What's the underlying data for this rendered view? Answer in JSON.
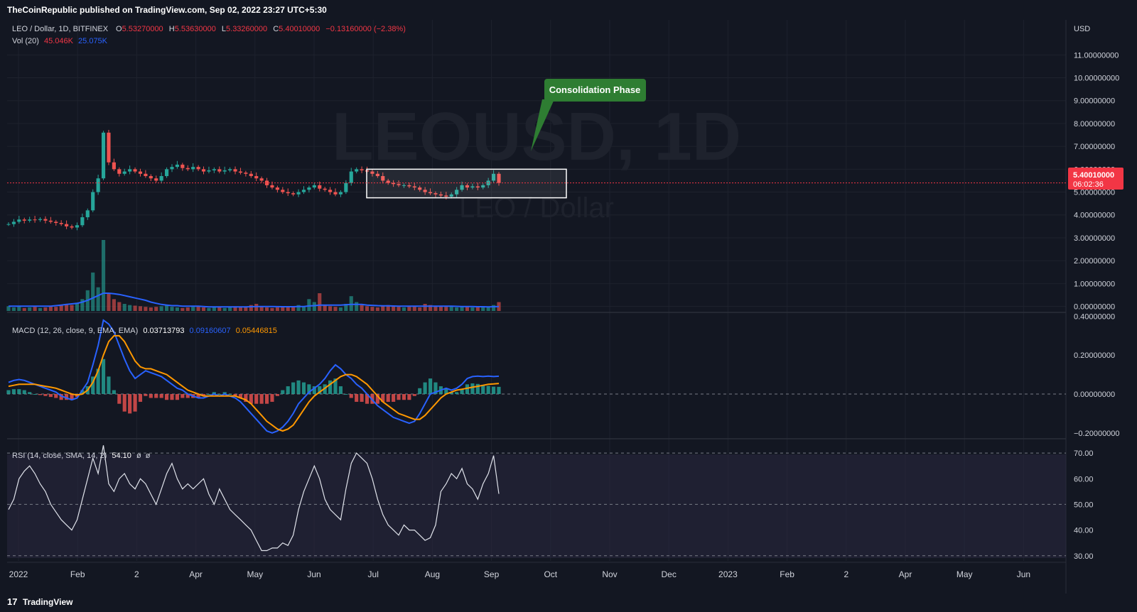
{
  "header": {
    "publisher": "TheCoinRepublic published on TradingView.com, Sep 02, 2022 23:27 UTC+5:30"
  },
  "footer": {
    "logo_text": "17",
    "brand": "TradingView"
  },
  "chart_data": {
    "type": "line",
    "symbol": "LEO / Dollar, 1D, BITFINEX",
    "watermark": "LEOUSD, 1D",
    "watermark_sub": "LEO / Dollar",
    "currency": "USD",
    "ohlc": {
      "open_label": "O",
      "open": "5.53270000",
      "high_label": "H",
      "high": "5.53630000",
      "low_label": "L",
      "low": "5.33260000",
      "close_label": "C",
      "close": "5.40010000",
      "change": "−0.13160000 (−2.38%)"
    },
    "last_price": "5.40010000",
    "countdown": "06:02:36",
    "volume": {
      "label": "Vol (20)",
      "value": "45.046K",
      "ma": "25.075K"
    },
    "macd": {
      "label": "MACD (12, 26, close, 9, EMA, EMA)",
      "hist": "0.03713793",
      "macd": "0.09160607",
      "signal": "0.05446815"
    },
    "rsi": {
      "label": "RSI (14, close, SMA, 14, 2)",
      "value": "54.10",
      "extra1": "ø",
      "extra2": "ø"
    },
    "annotation": {
      "text": "Consolidation Phase"
    },
    "price_ticks": [
      "11.00000000",
      "10.00000000",
      "9.00000000",
      "8.00000000",
      "7.00000000",
      "6.00000000",
      "5.00000000",
      "4.00000000",
      "3.00000000",
      "2.00000000",
      "1.00000000",
      "0.00000000"
    ],
    "price_ylim": [
      -0.2,
      11.6
    ],
    "macd_ticks": [
      "0.40000000",
      "0.20000000",
      "0.00000000",
      "−0.20000000"
    ],
    "macd_ylim": [
      -0.23,
      0.42
    ],
    "rsi_ticks": [
      "70.00",
      "60.00",
      "50.00",
      "40.00",
      "30.00"
    ],
    "rsi_ylim": [
      28,
      75
    ],
    "x_ticks": [
      "2022",
      "Feb",
      "2",
      "Apr",
      "May",
      "Jun",
      "Jul",
      "Aug",
      "Sep",
      "Oct",
      "Nov",
      "Dec",
      "2023",
      "Feb",
      "2",
      "Apr",
      "May",
      "Jun"
    ],
    "consolidation_box": {
      "x_start": "Jun 23, 2022",
      "x_end": "Sep 30, 2022",
      "y_high": 6.0,
      "y_low": 4.75
    },
    "close_series": [
      3.6,
      3.7,
      3.8,
      3.75,
      3.8,
      3.78,
      3.82,
      3.75,
      3.7,
      3.65,
      3.6,
      3.5,
      3.45,
      3.55,
      3.9,
      4.2,
      5.0,
      5.6,
      7.6,
      6.3,
      6.0,
      5.8,
      5.9,
      6.0,
      5.9,
      5.8,
      5.7,
      5.6,
      5.5,
      5.7,
      6.0,
      6.1,
      6.2,
      6.05,
      6.0,
      6.1,
      6.0,
      5.9,
      5.95,
      6.0,
      5.9,
      5.95,
      6.0,
      5.9,
      5.85,
      5.8,
      5.7,
      5.6,
      5.5,
      5.3,
      5.2,
      5.1,
      5.0,
      4.95,
      4.9,
      5.0,
      5.1,
      5.2,
      5.3,
      5.15,
      5.1,
      5.0,
      4.9,
      5.0,
      5.4,
      5.9,
      6.0,
      5.95,
      5.9,
      5.8,
      5.7,
      5.5,
      5.4,
      5.35,
      5.3,
      5.3,
      5.25,
      5.2,
      5.1,
      5.0,
      4.95,
      4.9,
      4.85,
      4.8,
      4.9,
      5.1,
      5.3,
      5.2,
      5.25,
      5.2,
      5.3,
      5.5,
      5.8,
      5.4
    ],
    "volume_series": [
      0.8,
      0.6,
      0.7,
      0.5,
      0.6,
      0.7,
      0.5,
      0.6,
      0.8,
      0.7,
      0.9,
      1.2,
      1.0,
      1.4,
      2.0,
      3.5,
      6.5,
      4.0,
      12.0,
      3.0,
      2.0,
      1.5,
      1.2,
      1.0,
      0.9,
      0.8,
      0.7,
      0.6,
      0.7,
      0.8,
      0.9,
      0.7,
      0.6,
      0.5,
      0.6,
      0.7,
      0.8,
      0.6,
      0.5,
      0.6,
      0.7,
      0.5,
      0.6,
      0.8,
      0.7,
      0.6,
      1.0,
      1.2,
      0.8,
      0.6,
      0.5,
      0.6,
      0.8,
      0.6,
      0.7,
      1.0,
      0.8,
      2.0,
      1.5,
      3.0,
      1.0,
      0.8,
      0.7,
      0.6,
      1.2,
      2.5,
      1.5,
      1.0,
      0.8,
      0.7,
      0.6,
      0.9,
      1.0,
      0.8,
      0.7,
      0.6,
      0.7,
      0.8,
      0.6,
      1.2,
      1.0,
      0.8,
      0.9,
      0.7,
      0.8,
      0.6,
      0.7,
      0.8,
      0.6,
      0.7,
      0.8,
      0.6,
      1.0,
      1.5
    ],
    "vol_ma_series": [
      0.8,
      0.8,
      0.8,
      0.8,
      0.8,
      0.8,
      0.8,
      0.8,
      0.8,
      0.9,
      1.0,
      1.1,
      1.2,
      1.3,
      1.5,
      1.8,
      2.2,
      2.6,
      3.0,
      3.0,
      2.9,
      2.8,
      2.6,
      2.4,
      2.2,
      2.0,
      1.8,
      1.5,
      1.3,
      1.1,
      1.0,
      0.9,
      0.9,
      0.8,
      0.8,
      0.8,
      0.8,
      0.75,
      0.7,
      0.7,
      0.7,
      0.7,
      0.7,
      0.7,
      0.7,
      0.7,
      0.72,
      0.74,
      0.75,
      0.75,
      0.74,
      0.73,
      0.72,
      0.72,
      0.72,
      0.74,
      0.76,
      0.85,
      0.9,
      1.0,
      1.0,
      1.0,
      1.0,
      1.0,
      1.05,
      1.1,
      1.1,
      1.1,
      1.0,
      0.95,
      0.9,
      0.88,
      0.86,
      0.84,
      0.82,
      0.8,
      0.8,
      0.8,
      0.8,
      0.82,
      0.82,
      0.82,
      0.82,
      0.8,
      0.8,
      0.78,
      0.76,
      0.75,
      0.74,
      0.72,
      0.72,
      0.7,
      0.72,
      0.75
    ],
    "macd_series": [
      0.06,
      0.07,
      0.075,
      0.07,
      0.06,
      0.05,
      0.04,
      0.03,
      0.02,
      0.01,
      -0.01,
      -0.02,
      -0.03,
      -0.02,
      0.02,
      0.06,
      0.15,
      0.25,
      0.38,
      0.36,
      0.32,
      0.25,
      0.18,
      0.12,
      0.08,
      0.1,
      0.12,
      0.11,
      0.1,
      0.09,
      0.07,
      0.05,
      0.03,
      0.02,
      0.0,
      -0.01,
      -0.02,
      -0.02,
      -0.01,
      0.0,
      -0.01,
      0.0,
      -0.01,
      -0.02,
      -0.04,
      -0.07,
      -0.1,
      -0.13,
      -0.16,
      -0.19,
      -0.2,
      -0.19,
      -0.17,
      -0.14,
      -0.1,
      -0.05,
      -0.02,
      0.01,
      0.03,
      0.05,
      0.08,
      0.12,
      0.15,
      0.13,
      0.1,
      0.08,
      0.05,
      0.03,
      0.0,
      -0.03,
      -0.06,
      -0.08,
      -0.1,
      -0.12,
      -0.13,
      -0.14,
      -0.15,
      -0.14,
      -0.1,
      -0.05,
      0.0,
      0.01,
      0.02,
      0.03,
      0.02,
      0.03,
      0.05,
      0.08,
      0.09,
      0.092,
      0.09,
      0.092,
      0.09,
      0.0916
    ],
    "signal_series": [
      0.04,
      0.045,
      0.05,
      0.05,
      0.05,
      0.05,
      0.045,
      0.04,
      0.035,
      0.03,
      0.02,
      0.01,
      0.0,
      -0.005,
      0.0,
      0.02,
      0.06,
      0.12,
      0.2,
      0.27,
      0.3,
      0.3,
      0.27,
      0.22,
      0.17,
      0.14,
      0.13,
      0.13,
      0.12,
      0.11,
      0.1,
      0.08,
      0.06,
      0.04,
      0.02,
      0.01,
      0.0,
      -0.01,
      -0.01,
      -0.01,
      -0.01,
      -0.01,
      -0.01,
      -0.01,
      -0.02,
      -0.03,
      -0.05,
      -0.08,
      -0.11,
      -0.14,
      -0.16,
      -0.18,
      -0.19,
      -0.18,
      -0.16,
      -0.12,
      -0.08,
      -0.04,
      -0.01,
      0.01,
      0.03,
      0.05,
      0.07,
      0.09,
      0.1,
      0.1,
      0.09,
      0.07,
      0.05,
      0.02,
      -0.01,
      -0.04,
      -0.06,
      -0.08,
      -0.1,
      -0.11,
      -0.12,
      -0.13,
      -0.13,
      -0.11,
      -0.08,
      -0.05,
      -0.02,
      0.0,
      0.01,
      0.02,
      0.025,
      0.03,
      0.035,
      0.04,
      0.045,
      0.05,
      0.052,
      0.0545
    ],
    "rsi_series": [
      48,
      52,
      60,
      63,
      65,
      62,
      58,
      55,
      50,
      47,
      44,
      42,
      40,
      44,
      52,
      60,
      68,
      62,
      73,
      58,
      55,
      60,
      62,
      58,
      56,
      60,
      58,
      54,
      50,
      56,
      62,
      66,
      60,
      56,
      58,
      56,
      58,
      60,
      54,
      50,
      56,
      52,
      48,
      46,
      44,
      42,
      40,
      36,
      32,
      32,
      33,
      33,
      35,
      34,
      38,
      48,
      55,
      60,
      65,
      60,
      52,
      48,
      46,
      44,
      56,
      66,
      70,
      68,
      66,
      60,
      52,
      46,
      42,
      40,
      38,
      42,
      40,
      40,
      38,
      36,
      37,
      42,
      55,
      58,
      62,
      60,
      64,
      58,
      56,
      52,
      58,
      62,
      69,
      54.1
    ]
  }
}
